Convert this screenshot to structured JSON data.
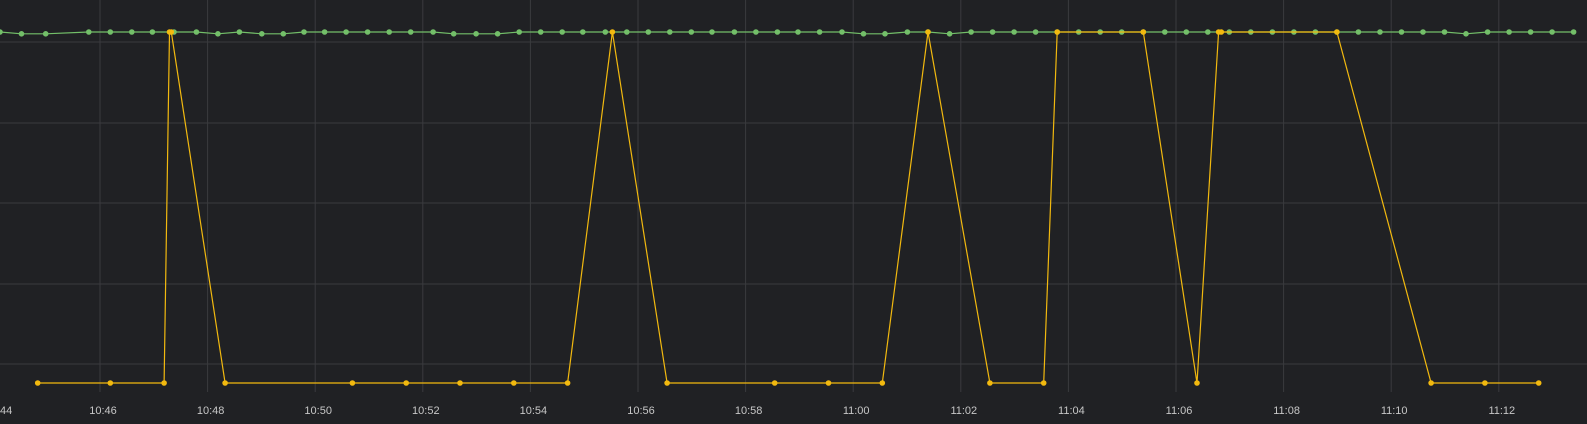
{
  "chart_data": {
    "type": "line",
    "title": "",
    "xlabel": "",
    "ylabel": "",
    "grid": true,
    "x_tick_labels": [
      "44",
      "10:46",
      "10:48",
      "10:50",
      "10:52",
      "10:54",
      "10:56",
      "10:58",
      "11:00",
      "11:02",
      "11:04",
      "11:06",
      "11:08",
      "11:10",
      "11:12"
    ],
    "series": [
      {
        "color": "#73bf69",
        "points": [
          [
            "10:44:00",
            1.0
          ],
          [
            "10:44:24",
            0.995
          ],
          [
            "10:44:51",
            0.995
          ],
          [
            "10:45:39",
            1.0
          ],
          [
            "10:46:03",
            1.0
          ],
          [
            "10:46:27",
            1.0
          ],
          [
            "10:46:50",
            1.0
          ],
          [
            "10:47:14",
            1.0
          ],
          [
            "10:47:39",
            1.0
          ],
          [
            "10:48:03",
            0.995
          ],
          [
            "10:48:27",
            1.0
          ],
          [
            "10:48:52",
            0.995
          ],
          [
            "10:49:16",
            0.995
          ],
          [
            "10:49:39",
            1.0
          ],
          [
            "10:50:02",
            1.0
          ],
          [
            "10:50:26",
            1.0
          ],
          [
            "10:50:50",
            1.0
          ],
          [
            "10:51:14",
            1.0
          ],
          [
            "10:51:38",
            1.0
          ],
          [
            "10:52:03",
            1.0
          ],
          [
            "10:52:26",
            0.995
          ],
          [
            "10:52:51",
            0.995
          ],
          [
            "10:53:15",
            0.995
          ],
          [
            "10:53:39",
            1.0
          ],
          [
            "10:54:03",
            1.0
          ],
          [
            "10:54:27",
            1.0
          ],
          [
            "10:54:50",
            1.0
          ],
          [
            "10:55:15",
            1.0
          ],
          [
            "10:55:39",
            1.0
          ],
          [
            "10:56:03",
            1.0
          ],
          [
            "10:56:27",
            1.0
          ],
          [
            "10:56:51",
            1.0
          ],
          [
            "10:57:14",
            1.0
          ],
          [
            "10:57:39",
            1.0
          ],
          [
            "10:58:03",
            1.0
          ],
          [
            "10:58:27",
            1.0
          ],
          [
            "10:58:50",
            1.0
          ],
          [
            "10:59:14",
            1.0
          ],
          [
            "10:59:39",
            1.0
          ],
          [
            "11:00:03",
            0.995
          ],
          [
            "11:00:27",
            0.995
          ],
          [
            "11:00:52",
            1.0
          ],
          [
            "11:01:15",
            1.0
          ],
          [
            "11:01:39",
            0.995
          ],
          [
            "11:02:03",
            1.0
          ],
          [
            "11:02:27",
            1.0
          ],
          [
            "11:02:51",
            1.0
          ],
          [
            "11:03:15",
            1.0
          ],
          [
            "11:03:39",
            1.0
          ],
          [
            "11:04:03",
            1.0
          ],
          [
            "11:04:27",
            1.0
          ],
          [
            "11:04:51",
            1.0
          ],
          [
            "11:05:15",
            1.0
          ],
          [
            "11:05:39",
            1.0
          ],
          [
            "11:06:03",
            1.0
          ],
          [
            "11:06:27",
            1.0
          ],
          [
            "11:06:51",
            1.0
          ],
          [
            "11:07:15",
            1.0
          ],
          [
            "11:07:39",
            1.0
          ],
          [
            "11:08:03",
            1.0
          ],
          [
            "11:08:27",
            1.0
          ],
          [
            "11:08:51",
            1.0
          ],
          [
            "11:09:15",
            1.0
          ],
          [
            "11:09:39",
            1.0
          ],
          [
            "11:10:03",
            1.0
          ],
          [
            "11:10:27",
            1.0
          ],
          [
            "11:10:51",
            1.0
          ],
          [
            "11:11:15",
            0.995
          ],
          [
            "11:11:39",
            1.0
          ],
          [
            "11:12:03",
            1.0
          ],
          [
            "11:12:27",
            1.0
          ],
          [
            "11:12:51",
            1.0
          ],
          [
            "11:13:15",
            1.0
          ]
        ]
      },
      {
        "color": "#f2b90f",
        "points": [
          [
            "10:44:42",
            0
          ],
          [
            "10:46:03",
            0
          ],
          [
            "10:47:03",
            0
          ],
          [
            "10:47:09",
            1.0
          ],
          [
            "10:47:11",
            1.0
          ],
          [
            "10:48:11",
            0
          ],
          [
            "10:50:33",
            0
          ],
          [
            "10:51:33",
            0
          ],
          [
            "10:52:33",
            0
          ],
          [
            "10:53:33",
            0
          ],
          [
            "10:54:33",
            0
          ],
          [
            "10:55:23",
            1.0
          ],
          [
            "10:56:24",
            0
          ],
          [
            "10:58:24",
            0
          ],
          [
            "10:59:24",
            0
          ],
          [
            "11:00:24",
            0
          ],
          [
            "11:01:15",
            1.0
          ],
          [
            "11:02:24",
            0
          ],
          [
            "11:03:24",
            0
          ],
          [
            "11:03:39",
            1.0
          ],
          [
            "11:05:15",
            1.0
          ],
          [
            "11:06:15",
            0
          ],
          [
            "11:06:39",
            1.0
          ],
          [
            "11:06:42",
            1.0
          ],
          [
            "11:08:51",
            1.0
          ],
          [
            "11:10:36",
            0
          ],
          [
            "11:11:36",
            0
          ],
          [
            "11:12:36",
            0
          ]
        ]
      }
    ]
  }
}
